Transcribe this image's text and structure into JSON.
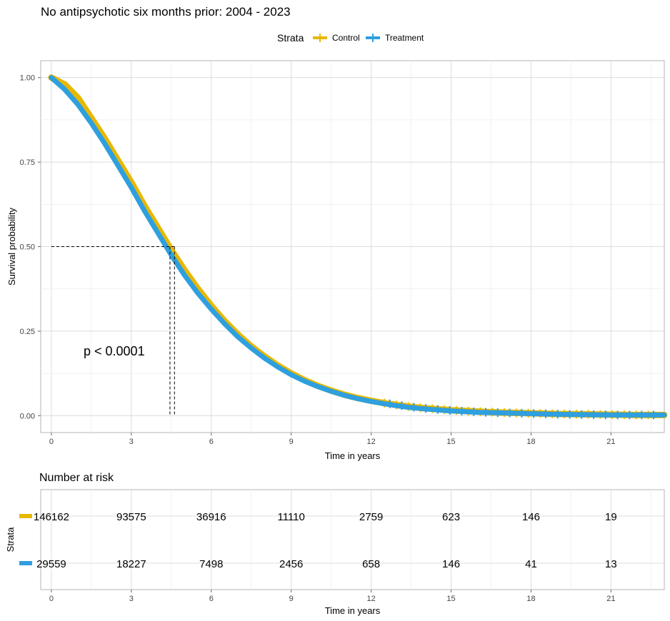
{
  "chart_data": {
    "type": "line",
    "title": "No antipsychotic six months prior: 2004 - 2023",
    "legend": {
      "title": "Strata",
      "position": "top"
    },
    "xlabel": "Time in years",
    "ylabel": "Survival probability",
    "xlim": [
      -0.4,
      23
    ],
    "ylim": [
      -0.05,
      1.05
    ],
    "x_ticks": [
      0,
      3,
      6,
      9,
      12,
      15,
      18,
      21
    ],
    "y_ticks": [
      0,
      0.25,
      0.5,
      0.75,
      1.0
    ],
    "y_tick_labels": [
      "0.00",
      "0.25",
      "0.50",
      "0.75",
      "1.00"
    ],
    "grid": true,
    "annotation": "p < 0.0001",
    "median_survival": {
      "y": 0.5,
      "x": [
        4.45,
        4.62
      ]
    },
    "series": [
      {
        "name": "Control",
        "color": "#E7B800",
        "x": [
          0,
          0.5,
          1,
          1.5,
          2,
          2.5,
          3,
          3.5,
          4,
          4.5,
          5,
          5.5,
          6,
          6.5,
          7,
          7.5,
          8,
          8.5,
          9,
          9.5,
          10,
          10.5,
          11,
          11.5,
          12,
          12.5,
          13,
          13.5,
          14,
          15,
          16,
          17,
          18,
          19,
          20,
          21,
          22,
          23
        ],
        "y": [
          1.0,
          0.98,
          0.94,
          0.88,
          0.82,
          0.755,
          0.69,
          0.62,
          0.555,
          0.49,
          0.43,
          0.375,
          0.325,
          0.28,
          0.24,
          0.205,
          0.175,
          0.148,
          0.125,
          0.105,
          0.088,
          0.074,
          0.062,
          0.052,
          0.044,
          0.037,
          0.031,
          0.026,
          0.022,
          0.016,
          0.012,
          0.009,
          0.007,
          0.005,
          0.004,
          0.003,
          0.002,
          0.002
        ]
      },
      {
        "name": "Treatment",
        "color": "#2E9FDF",
        "x": [
          0,
          0.5,
          1,
          1.5,
          2,
          2.5,
          3,
          3.5,
          4,
          4.5,
          5,
          5.5,
          6,
          6.5,
          7,
          7.5,
          8,
          8.5,
          9,
          9.5,
          10,
          10.5,
          11,
          11.5,
          12,
          12.5,
          13,
          13.5,
          14,
          15,
          16,
          17,
          18,
          19,
          20,
          21,
          22,
          23
        ],
        "y": [
          1.0,
          0.965,
          0.92,
          0.865,
          0.805,
          0.74,
          0.675,
          0.605,
          0.54,
          0.475,
          0.415,
          0.362,
          0.315,
          0.272,
          0.233,
          0.2,
          0.17,
          0.144,
          0.121,
          0.102,
          0.086,
          0.072,
          0.06,
          0.05,
          0.042,
          0.035,
          0.029,
          0.024,
          0.02,
          0.014,
          0.01,
          0.008,
          0.006,
          0.004,
          0.003,
          0.002,
          0.002,
          0.002
        ]
      }
    ],
    "risk_table": {
      "title": "Number at risk",
      "ylabel": "Strata",
      "xlabel": "Time in years",
      "x_ticks": [
        0,
        3,
        6,
        9,
        12,
        15,
        18,
        21
      ],
      "rows": [
        {
          "name": "Control",
          "color": "#E7B800",
          "values": [
            146162,
            93575,
            36916,
            11110,
            2759,
            623,
            146,
            19
          ]
        },
        {
          "name": "Treatment",
          "color": "#2E9FDF",
          "values": [
            29559,
            18227,
            7498,
            2456,
            658,
            146,
            41,
            13
          ]
        }
      ]
    }
  }
}
